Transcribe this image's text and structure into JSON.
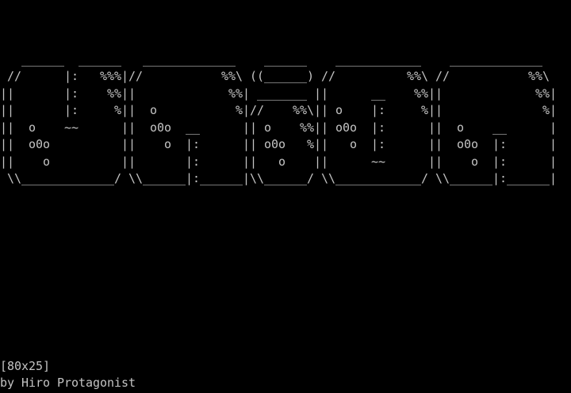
{
  "terminal": {
    "art_lines": [
      "   ______  ______   _____________    ______    ____________    _____________",
      " //      |:   %%%|//           %%\\ ((______) //          %%\\ //           %%\\",
      "||       |:    %%||             %%| _______ ||      __    %%||             %%|",
      "||       |:     %||  o           %|//    %%\\|| o    |:     %||              %|",
      "||  o    ~~      ||  o0o  __      || o    %%|| o0o  |:      ||  o    __      |",
      "||  o0o          ||    o  |:      || o0o   %||   o  |:      ||  o0o  |:      |",
      "||    o          ||       |:      ||   o    ||      ~~      ||    o  |:      |",
      " \\\\_____________/ \\\\______|:______|\\\\______/ \\\\____________/ \\\\______|:______|"
    ],
    "size_label": "[80x25]",
    "credit": "by Hiro Protagonist"
  }
}
